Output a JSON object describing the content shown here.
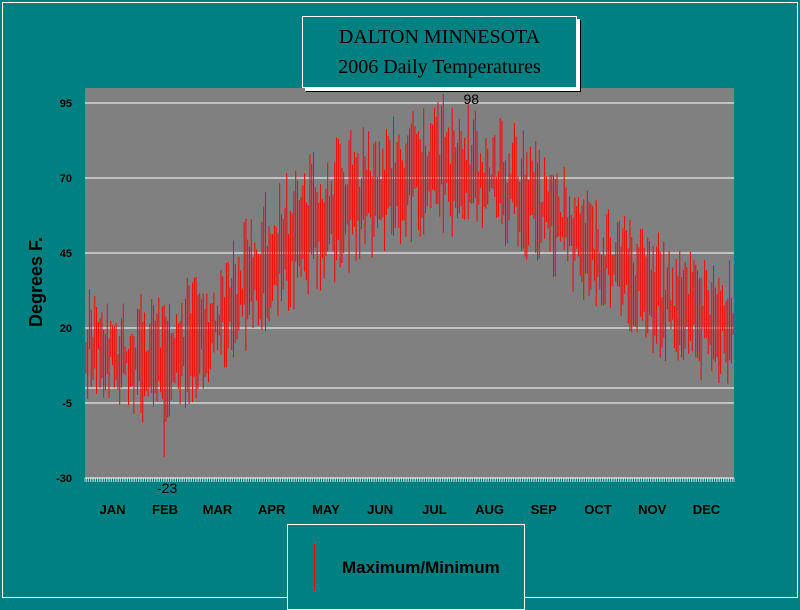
{
  "chart_data": {
    "type": "line",
    "title_lines": [
      "DALTON MINNESOTA",
      "2006 Daily Temperatures"
    ],
    "ylabel": "Degrees F.",
    "xlabel": "",
    "ylim": [
      -30,
      100
    ],
    "yticks": [
      -30,
      -5,
      20,
      45,
      70,
      95
    ],
    "extra_gridline": 0,
    "months": [
      "JAN",
      "FEB",
      "MAR",
      "APR",
      "MAY",
      "JUN",
      "JUL",
      "AUG",
      "SEP",
      "OCT",
      "NOV",
      "DEC"
    ],
    "grid": true,
    "legend_position": "bottom-center",
    "annotations": [
      {
        "label": "98",
        "day": 201,
        "value": 98
      },
      {
        "label": "-23",
        "day": 44,
        "value": -23
      }
    ],
    "series": [
      {
        "name": "Maximum/Minimum",
        "color": "#ff0000",
        "monthly_max": [
          22,
          21,
          33,
          58,
          72,
          80,
          86,
          82,
          72,
          55,
          42,
          32
        ],
        "monthly_min": [
          4,
          -8,
          12,
          30,
          42,
          54,
          60,
          58,
          48,
          33,
          20,
          10
        ]
      }
    ]
  },
  "colors": {
    "page_bg": "#008080",
    "plot_bg": "#808080",
    "series": "#ff0000",
    "grid": "#ffffff"
  }
}
